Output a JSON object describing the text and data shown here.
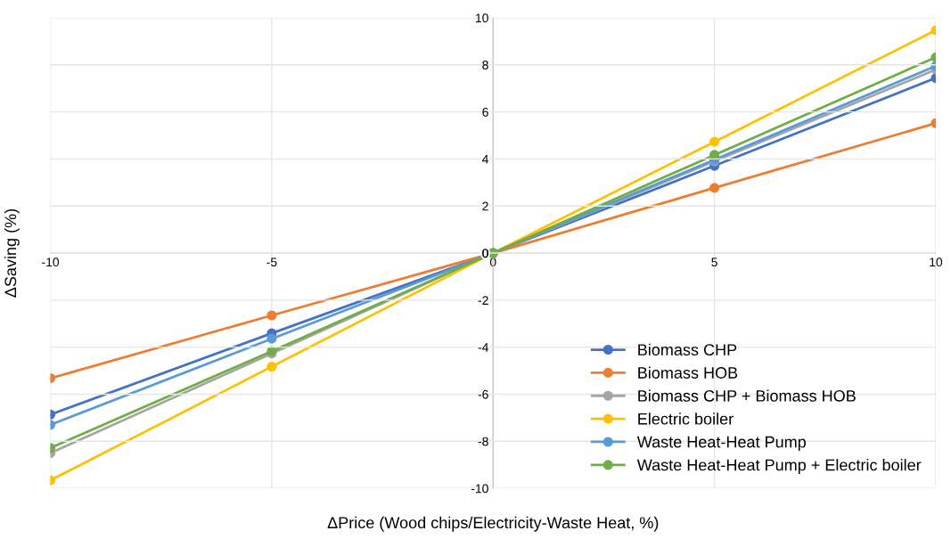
{
  "chart_data": {
    "type": "line",
    "xlabel": "ΔPrice (Wood chips/Electricity-Waste Heat, %)",
    "ylabel": "ΔSaving (%)",
    "x": [
      -10,
      -5,
      0,
      5,
      10
    ],
    "series": [
      {
        "name": "Biomass CHP",
        "color": "#4472c4",
        "values": [
          -6.86,
          -3.41,
          0,
          3.71,
          7.44
        ]
      },
      {
        "name": "Biomass HOB",
        "color": "#ed7d31",
        "values": [
          -5.32,
          -2.65,
          0,
          2.77,
          5.52
        ]
      },
      {
        "name": "Biomass CHP + Biomass HOB",
        "color": "#a5a5a5",
        "values": [
          -8.5,
          -4.27,
          0,
          3.9,
          7.8
        ]
      },
      {
        "name": "Electric boiler",
        "color": "#ffc000",
        "values": [
          -9.66,
          -4.83,
          0,
          4.73,
          9.47
        ]
      },
      {
        "name": "Waste Heat-Heat Pump",
        "color": "#5b9bd5",
        "values": [
          -7.3,
          -3.64,
          0,
          3.97,
          7.95
        ]
      },
      {
        "name": "Waste Heat-Heat Pump + Electric boiler",
        "color": "#70ad47",
        "values": [
          -8.28,
          -4.17,
          0,
          4.17,
          8.32
        ]
      }
    ],
    "xlim": [
      -10,
      10
    ],
    "xticks": [
      -10,
      -5,
      0,
      5,
      10
    ],
    "ylim": [
      -10,
      10
    ],
    "yticks": [
      -10,
      -8,
      -6,
      -4,
      -2,
      0,
      2,
      4,
      6,
      8,
      10
    ],
    "grid": true,
    "legend": "bottom right",
    "marker": "circle",
    "line_style": "solid"
  }
}
